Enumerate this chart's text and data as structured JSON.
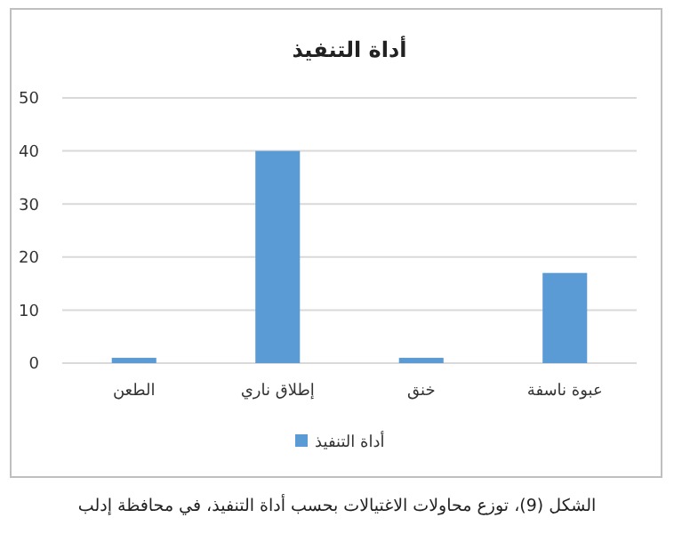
{
  "chart_data": {
    "type": "bar",
    "title": "أداة التنفيذ",
    "categories": [
      "الطعن",
      "إطلاق ناري",
      "خنق",
      "عبوة ناسفة"
    ],
    "series": [
      {
        "name": "أداة التنفيذ",
        "color": "#5b9bd5",
        "values": [
          1,
          40,
          1,
          17
        ]
      }
    ],
    "ylim": [
      0,
      50
    ],
    "yticks": [
      0,
      10,
      20,
      30,
      40,
      50
    ],
    "grid": "y",
    "legend": "bottom",
    "annotations": [
      "الشكل (9)، توزع محاولات الاغتيالات بحسب أداة التنفيذ، في محافظة إدلب"
    ]
  }
}
